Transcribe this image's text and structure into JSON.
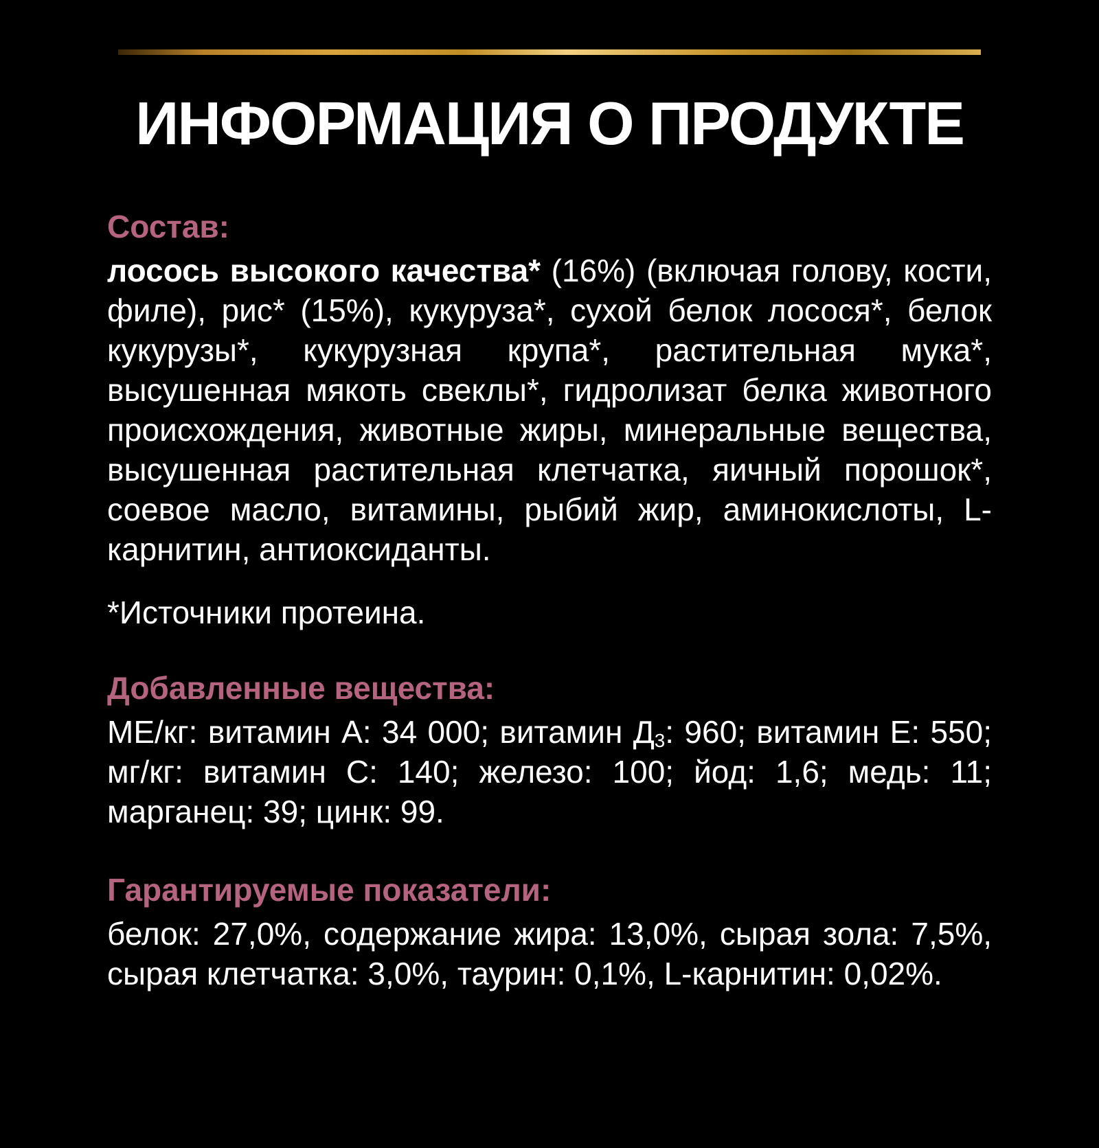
{
  "colors": {
    "background": "#000000",
    "text": "#ffffff",
    "accent": "#b5647f",
    "gold": "#d9a33c"
  },
  "title": "ИНФОРМАЦИЯ О ПРОДУКТЕ",
  "sections": {
    "composition": {
      "header": "Состав:",
      "lead_bold": "лосось высокого качества*",
      "rest": " (16%) (включая голову, кости, филе), рис* (15%), кукуруза*, сухой белок лосося*, белок кукурузы*, кукурузная крупа*, растительная мука*, высушенная мякоть свеклы*, гидролизат белка животного происхождения, животные жиры, минеральные вещества, высушенная растительная клетчатка, яичный порошок*, соевое масло, витамины, рыбий жир, аминокислоты, L-карнитин, антиоксиданты.",
      "footnote": "*Источники протеина."
    },
    "additives": {
      "header": "Добавленные вещества:",
      "line_pre_subscript": "МЕ/кг: витамин А: 34 000; витамин Д",
      "subscript": "3",
      "line_post_subscript": ": 960; витамин Е: 550; мг/кг: витамин С: 140; железо: 100; йод: 1,6; медь: 11; марганец: 39; цинк: 99."
    },
    "guaranteed": {
      "header": "Гарантируемые показатели:",
      "body": "белок: 27,0%, содержание жира: 13,0%, сырая зола: 7,5%, сырая клетчатка: 3,0%, таурин: 0,1%, L-карнитин: 0,02%."
    }
  }
}
